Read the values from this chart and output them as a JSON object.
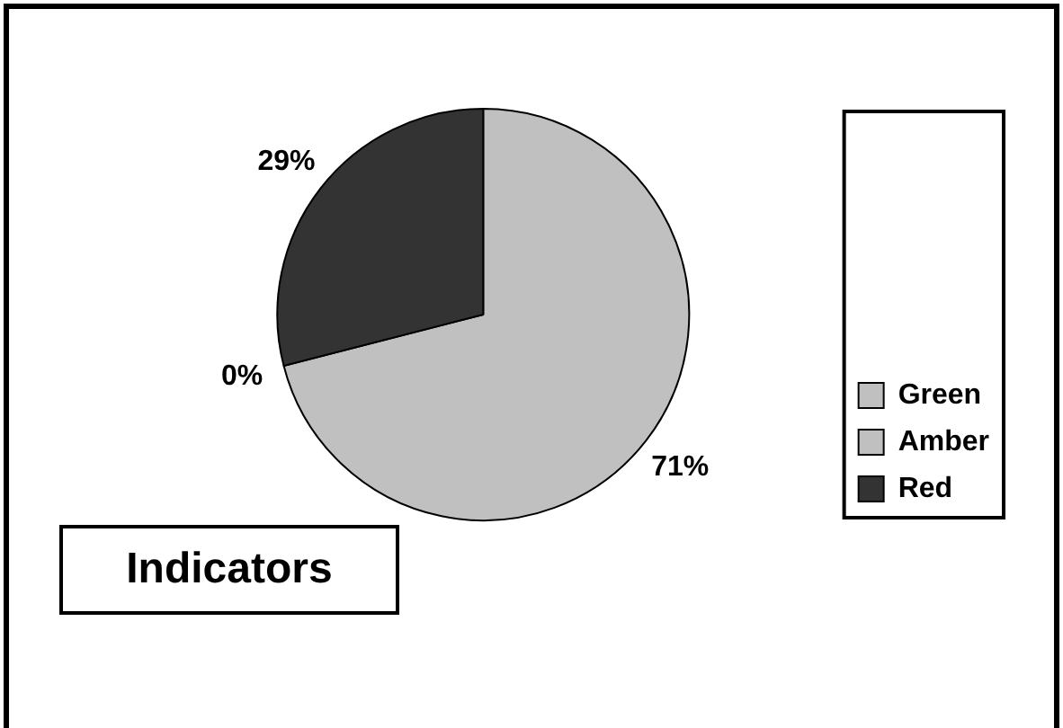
{
  "chart_data": {
    "type": "pie",
    "title": "Indicators",
    "categories": [
      "Green",
      "Amber",
      "Red"
    ],
    "values": [
      71,
      0,
      29
    ],
    "colors": [
      "#c0c0c0",
      "#c0c0c0",
      "#333333"
    ],
    "value_labels": [
      "71%",
      "0%",
      "29%"
    ],
    "legend": "bottom right"
  }
}
